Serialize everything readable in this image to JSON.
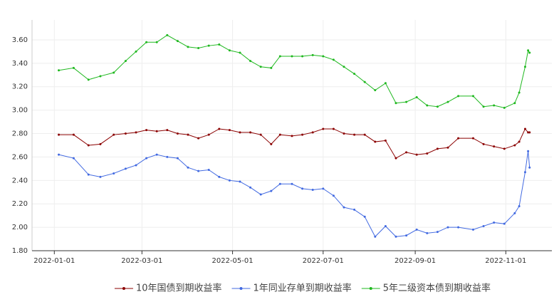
{
  "chart_data": {
    "type": "line",
    "x": [
      "2022-01-04",
      "2022-01-14",
      "2022-01-24",
      "2022-02-01",
      "2022-02-10",
      "2022-02-18",
      "2022-02-25",
      "2022-03-04",
      "2022-03-11",
      "2022-03-18",
      "2022-03-25",
      "2022-04-01",
      "2022-04-08",
      "2022-04-15",
      "2022-04-22",
      "2022-04-29",
      "2022-05-06",
      "2022-05-13",
      "2022-05-20",
      "2022-05-27",
      "2022-06-02",
      "2022-06-10",
      "2022-06-17",
      "2022-06-24",
      "2022-07-01",
      "2022-07-08",
      "2022-07-15",
      "2022-07-22",
      "2022-07-29",
      "2022-08-05",
      "2022-08-12",
      "2022-08-19",
      "2022-08-26",
      "2022-09-02",
      "2022-09-09",
      "2022-09-16",
      "2022-09-23",
      "2022-09-30",
      "2022-10-10",
      "2022-10-17",
      "2022-10-24",
      "2022-10-31",
      "2022-11-07",
      "2022-11-10",
      "2022-11-14",
      "2022-11-16",
      "2022-11-17"
    ],
    "series": [
      {
        "name": "10年国债到期收益率",
        "color": "#8b0000",
        "values": [
          2.79,
          2.79,
          2.7,
          2.71,
          2.79,
          2.8,
          2.81,
          2.83,
          2.82,
          2.83,
          2.8,
          2.79,
          2.76,
          2.79,
          2.84,
          2.83,
          2.81,
          2.81,
          2.79,
          2.71,
          2.79,
          2.78,
          2.79,
          2.81,
          2.84,
          2.84,
          2.8,
          2.79,
          2.79,
          2.73,
          2.74,
          2.59,
          2.64,
          2.62,
          2.63,
          2.67,
          2.68,
          2.76,
          2.76,
          2.71,
          2.69,
          2.67,
          2.7,
          2.73,
          2.84,
          2.81,
          2.81
        ]
      },
      {
        "name": "1年同业存单到期收益率",
        "color": "#4169e1",
        "values": [
          2.62,
          2.59,
          2.45,
          2.43,
          2.46,
          2.5,
          2.53,
          2.59,
          2.62,
          2.6,
          2.59,
          2.51,
          2.48,
          2.49,
          2.43,
          2.4,
          2.39,
          2.34,
          2.28,
          2.31,
          2.37,
          2.37,
          2.33,
          2.32,
          2.33,
          2.27,
          2.17,
          2.15,
          2.09,
          1.92,
          2.01,
          1.92,
          1.93,
          1.98,
          1.95,
          1.96,
          2.0,
          2.0,
          1.98,
          2.01,
          2.04,
          2.03,
          2.12,
          2.18,
          2.47,
          2.65,
          2.51
        ]
      },
      {
        "name": "5年二级资本债到期收益率",
        "color": "#1fb81f",
        "values": [
          3.34,
          3.36,
          3.26,
          3.29,
          3.32,
          3.42,
          3.5,
          3.58,
          3.58,
          3.64,
          3.59,
          3.54,
          3.53,
          3.55,
          3.56,
          3.51,
          3.49,
          3.42,
          3.37,
          3.36,
          3.46,
          3.46,
          3.46,
          3.47,
          3.46,
          3.43,
          3.37,
          3.31,
          3.24,
          3.17,
          3.23,
          3.06,
          3.07,
          3.11,
          3.04,
          3.03,
          3.07,
          3.12,
          3.12,
          3.03,
          3.04,
          3.02,
          3.06,
          3.15,
          3.37,
          3.51,
          3.49
        ]
      }
    ],
    "xlim": [
      "2021-12-17",
      "2022-12-02"
    ],
    "xticks": [
      "2022-01-01",
      "2022-03-01",
      "2022-05-01",
      "2022-07-01",
      "2022-09-01",
      "2022-11-01"
    ],
    "ylim": [
      1.8,
      3.77
    ],
    "yticks": [
      {
        "value": 1.8,
        "label": "1.80"
      },
      {
        "value": 2.0,
        "label": "2.00"
      },
      {
        "value": 2.2,
        "label": "2.20"
      },
      {
        "value": 2.4,
        "label": "2.40"
      },
      {
        "value": 2.6,
        "label": "2.60"
      },
      {
        "value": 2.8,
        "label": "2.80"
      },
      {
        "value": 3.0,
        "label": "3.00"
      },
      {
        "value": 3.2,
        "label": "3.20"
      },
      {
        "value": 3.4,
        "label": "3.40"
      },
      {
        "value": 3.6,
        "label": "3.60"
      }
    ],
    "grid": true,
    "legend": "bottom"
  }
}
